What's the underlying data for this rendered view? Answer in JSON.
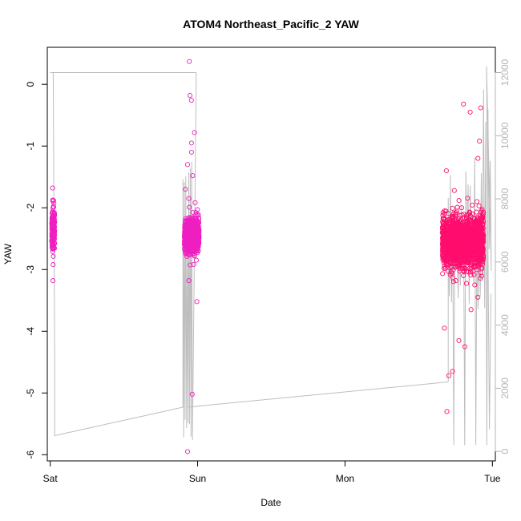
{
  "chart_data": {
    "type": "scatter",
    "title": "ATOM4 Northeast_Pacific_2 YAW",
    "xlabel": "Date",
    "ylabel": "YAW",
    "x_ticks": [
      "Sat",
      "Sun",
      "Mon",
      "Tue"
    ],
    "x_range_days": [
      -0.02,
      3.02
    ],
    "y_left_ticks": [
      "0",
      "-1",
      "-2",
      "-3",
      "-4",
      "-5",
      "-6"
    ],
    "y_left_range": [
      -6.1,
      0.6
    ],
    "y_right_ticks": [
      "0",
      "2000",
      "4000",
      "6000",
      "8000",
      "10000",
      "12000"
    ],
    "y_right_range": [
      -300,
      12800
    ],
    "colors": {
      "points_sat_sun": "#ee1fc0",
      "points_tue": "#ff0d6e",
      "line": "#bebebe",
      "right_axis": "#b4b4b4",
      "box": "#000000"
    },
    "series": [
      {
        "kind": "points",
        "clusters": [
          {
            "x_center": 0.02,
            "x_spread": 0.01,
            "y_mean": -2.35,
            "y_sd": 0.18,
            "n": 160,
            "outliers": [
              -1.68,
              -1.88,
              -1.98,
              -2.05,
              -2.92,
              -3.18
            ]
          },
          {
            "x_center": 0.96,
            "x_spread": 0.05,
            "y_mean": -2.45,
            "y_sd": 0.14,
            "n": 700,
            "outliers": [
              0.37,
              -0.18,
              -0.26,
              -0.78,
              -0.95,
              -1.1,
              -1.3,
              -1.48,
              -1.7,
              -1.85,
              -3.18,
              -3.52,
              -5.02,
              -5.95
            ]
          },
          {
            "x_center": 2.8,
            "x_spread": 0.14,
            "y_mean": -2.55,
            "y_sd": 0.2,
            "n": 1700,
            "outliers": [
              -0.32,
              -0.38,
              -0.45,
              -0.92,
              -1.2,
              -1.4,
              -1.72,
              -1.9,
              -3.25,
              -3.45,
              -3.65,
              -3.95,
              -4.15,
              -4.25,
              -4.65,
              -4.72,
              -5.3
            ]
          }
        ]
      },
      {
        "kind": "line",
        "axis": "right",
        "description_points": [
          [
            0.0,
            12000
          ],
          [
            0.02,
            12000
          ],
          [
            0.03,
            3000
          ],
          [
            0.03,
            500
          ],
          [
            0.95,
            12000
          ],
          [
            2.7,
            1000
          ],
          [
            2.73,
            9500
          ],
          [
            3.0,
            12000
          ]
        ]
      }
    ],
    "grid": false,
    "legend": "none"
  }
}
